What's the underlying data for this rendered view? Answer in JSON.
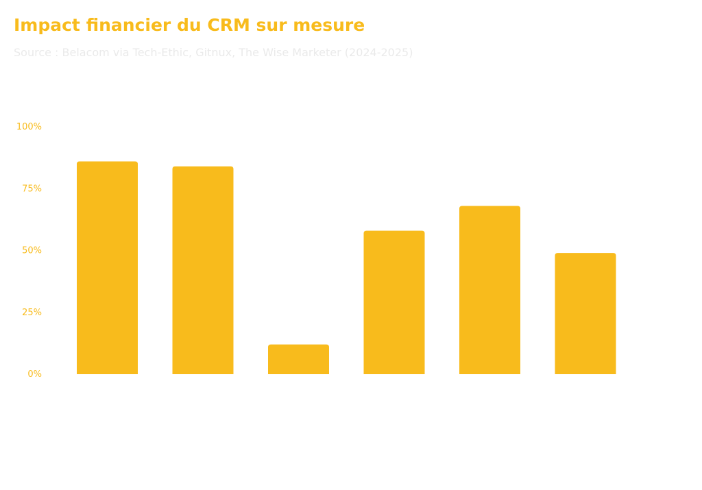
{
  "chart_data": {
    "type": "bar",
    "title": "Impact financier du CRM sur mesure",
    "subtitle": "Source : Belacom via Tech-Ethic, Gitnux, The Wise Marketer (2024-2025)",
    "categories": [
      "",
      "",
      "",
      "",
      "",
      ""
    ],
    "values": [
      86,
      84,
      12,
      58,
      68,
      49
    ],
    "ylim": [
      0,
      100
    ],
    "yticks": [
      0,
      25,
      50,
      75,
      100
    ],
    "ytick_labels": [
      "0%",
      "25%",
      "50%",
      "75%",
      "100%"
    ],
    "bar_color": "#f8bb1c",
    "grid": false,
    "legend": "none"
  }
}
